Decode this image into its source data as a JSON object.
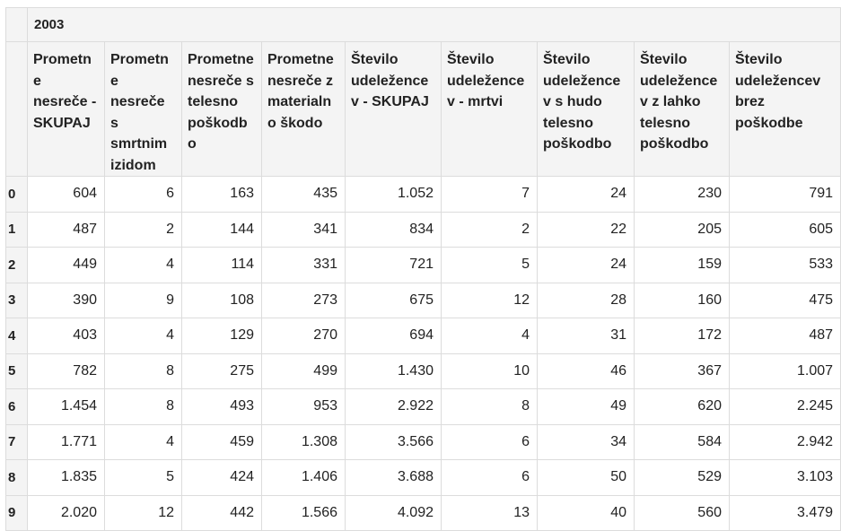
{
  "table": {
    "group_header": "2003",
    "columns": [
      "Prometne nesreče - SKUPAJ",
      "Prometne nesreče s smrtnim izidom",
      "Prometne nesreče s telesno poškodbo",
      "Prometne nesreče z materialno škodo",
      "Število udeležencev - SKUPAJ",
      "Število udeležencev - mrtvi",
      "Število udeležencev s hudo telesno poškodbo",
      "Število udeležencev z lahko telesno poškodbo",
      "Število udeležencev brez poškodbe"
    ],
    "rows": [
      {
        "index": "0",
        "cells": [
          "604",
          "6",
          "163",
          "435",
          "1.052",
          "7",
          "24",
          "230",
          "791"
        ]
      },
      {
        "index": "1",
        "cells": [
          "487",
          "2",
          "144",
          "341",
          "834",
          "2",
          "22",
          "205",
          "605"
        ]
      },
      {
        "index": "2",
        "cells": [
          "449",
          "4",
          "114",
          "331",
          "721",
          "5",
          "24",
          "159",
          "533"
        ]
      },
      {
        "index": "3",
        "cells": [
          "390",
          "9",
          "108",
          "273",
          "675",
          "12",
          "28",
          "160",
          "475"
        ]
      },
      {
        "index": "4",
        "cells": [
          "403",
          "4",
          "129",
          "270",
          "694",
          "4",
          "31",
          "172",
          "487"
        ]
      },
      {
        "index": "5",
        "cells": [
          "782",
          "8",
          "275",
          "499",
          "1.430",
          "10",
          "46",
          "367",
          "1.007"
        ]
      },
      {
        "index": "6",
        "cells": [
          "1.454",
          "8",
          "493",
          "953",
          "2.922",
          "8",
          "49",
          "620",
          "2.245"
        ]
      },
      {
        "index": "7",
        "cells": [
          "1.771",
          "4",
          "459",
          "1.308",
          "3.566",
          "6",
          "34",
          "584",
          "2.942"
        ]
      },
      {
        "index": "8",
        "cells": [
          "1.835",
          "5",
          "424",
          "1.406",
          "3.688",
          "6",
          "50",
          "529",
          "3.103"
        ]
      },
      {
        "index": "9",
        "cells": [
          "2.020",
          "12",
          "442",
          "1.566",
          "4.092",
          "13",
          "40",
          "560",
          "3.479"
        ]
      }
    ]
  }
}
